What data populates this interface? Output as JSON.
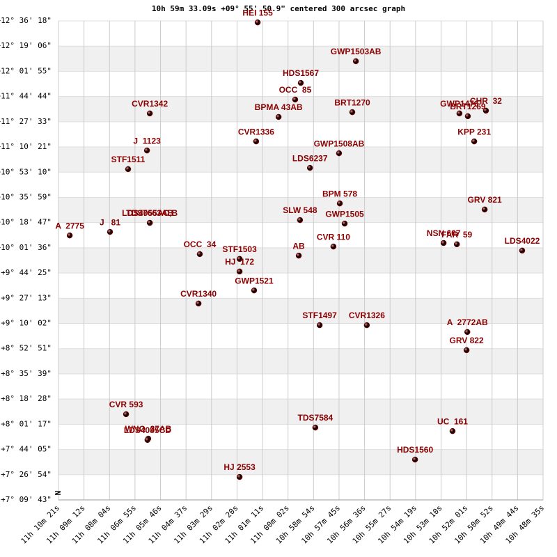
{
  "chart_data": {
    "type": "scatter",
    "title": "10h 59m 33.09s +09° 55' 50.9\" centered 300 arcsec graph",
    "compass": "N",
    "color": "#cc0000",
    "label_color": "#8b0000",
    "grid": true,
    "xlim": [
      0,
      19
    ],
    "ylim": [
      0,
      19
    ],
    "xticks": [
      {
        "value": 0,
        "label": "11h 10m 21s"
      },
      {
        "value": 1,
        "label": "11h 09m 12s"
      },
      {
        "value": 2,
        "label": "11h 08m 04s"
      },
      {
        "value": 3,
        "label": "11h 06m 55s"
      },
      {
        "value": 4,
        "label": "11h 05m 46s"
      },
      {
        "value": 5,
        "label": "11h 04m 37s"
      },
      {
        "value": 6,
        "label": "11h 03m 29s"
      },
      {
        "value": 7,
        "label": "11h 02m 20s"
      },
      {
        "value": 8,
        "label": "11h 01m 11s"
      },
      {
        "value": 9,
        "label": "11h 00m 02s"
      },
      {
        "value": 10,
        "label": "10h 58m 54s"
      },
      {
        "value": 11,
        "label": "10h 57m 45s"
      },
      {
        "value": 12,
        "label": "10h 56m 36s"
      },
      {
        "value": 13,
        "label": "10h 55m 27s"
      },
      {
        "value": 14,
        "label": "10h 54m 19s"
      },
      {
        "value": 15,
        "label": "10h 53m 10s"
      },
      {
        "value": 16,
        "label": "10h 52m 01s"
      },
      {
        "value": 17,
        "label": "10h 50m 52s"
      },
      {
        "value": 18,
        "label": "10h 49m 44s"
      },
      {
        "value": 19,
        "label": "10h 48m 35s"
      }
    ],
    "yticks": [
      {
        "value": 0,
        "label": "+7° 09' 43\""
      },
      {
        "value": 1,
        "label": "+7° 26' 54\""
      },
      {
        "value": 2,
        "label": "+7° 44' 05\""
      },
      {
        "value": 3,
        "label": "+8° 01' 17\""
      },
      {
        "value": 4,
        "label": "+8° 18' 28\""
      },
      {
        "value": 5,
        "label": "+8° 35' 39\""
      },
      {
        "value": 6,
        "label": "+8° 52' 51\""
      },
      {
        "value": 7,
        "label": "+9° 10' 02\""
      },
      {
        "value": 8,
        "label": "+9° 27' 13\""
      },
      {
        "value": 9,
        "label": "+9° 44' 25\""
      },
      {
        "value": 10,
        "label": "+10° 01' 36\""
      },
      {
        "value": 11,
        "label": "+10° 18' 47\""
      },
      {
        "value": 12,
        "label": "+10° 35' 59\""
      },
      {
        "value": 13,
        "label": "+10° 53' 10\""
      },
      {
        "value": 14,
        "label": "+11° 10' 21\""
      },
      {
        "value": 15,
        "label": "+11° 27' 33\""
      },
      {
        "value": 16,
        "label": "+11° 44' 44\""
      },
      {
        "value": 17,
        "label": "+12° 01' 55\""
      },
      {
        "value": 18,
        "label": "+12° 19' 06\""
      },
      {
        "value": 19,
        "label": "+12° 36' 18\""
      }
    ],
    "labels": [
      "HEI 155",
      "GWP1503AB",
      "HDS1567",
      "OCC  85",
      "BRT1270",
      "CVR1342",
      "BPMA 43AB",
      "GWP1476",
      "BRT1269",
      "CHR  32",
      "KPP 231",
      "CVR1336",
      "J  1123",
      "GWP1508AB",
      "STF1511",
      "LDS6237",
      "BPM 578",
      "GRV 821",
      "LDS4055AC,B",
      "TDS7663AB",
      "SLW 548",
      "GWP1505",
      "A  2775",
      "J   81",
      "NSN 607",
      "FAR  59",
      "CVR 110",
      "LDS4022",
      "OCC  34",
      "STF1503",
      "AB",
      "HJ  172",
      "GWP1521",
      "CVR1340",
      "STF1497",
      "CVR1326",
      "A  2772AB",
      "GRV 822",
      "CVR 593",
      "WNO  37AB",
      "LDS4085CD",
      "TDS7584",
      "UC  161",
      "HDS1560",
      "HJ 2553"
    ],
    "x": [
      7.81,
      11.66,
      9.5,
      9.28,
      11.52,
      3.58,
      8.63,
      15.72,
      16.05,
      16.76,
      16.3,
      7.75,
      3.47,
      11.0,
      2.73,
      9.86,
      11.03,
      16.71,
      3.58,
      3.58,
      9.47,
      11.22,
      0.44,
      2.02,
      15.1,
      15.62,
      10.78,
      18.18,
      5.54,
      7.1,
      9.42,
      7.1,
      7.67,
      5.49,
      10.24,
      12.09,
      16.03,
      16.0,
      2.65,
      3.52,
      3.49,
      10.07,
      15.45,
      13.98,
      7.1
    ],
    "y": [
      18.94,
      17.4,
      16.54,
      15.88,
      15.38,
      15.33,
      15.19,
      15.33,
      15.22,
      15.44,
      14.22,
      14.22,
      13.86,
      13.75,
      13.12,
      13.17,
      11.76,
      11.52,
      10.99,
      10.99,
      11.1,
      10.96,
      10.49,
      10.63,
      10.19,
      10.14,
      10.05,
      9.89,
      9.75,
      9.56,
      9.69,
      9.06,
      8.31,
      7.79,
      6.93,
      6.93,
      6.66,
      5.94,
      3.4,
      2.43,
      2.38,
      2.87,
      2.73,
      1.6,
      0.91
    ]
  }
}
